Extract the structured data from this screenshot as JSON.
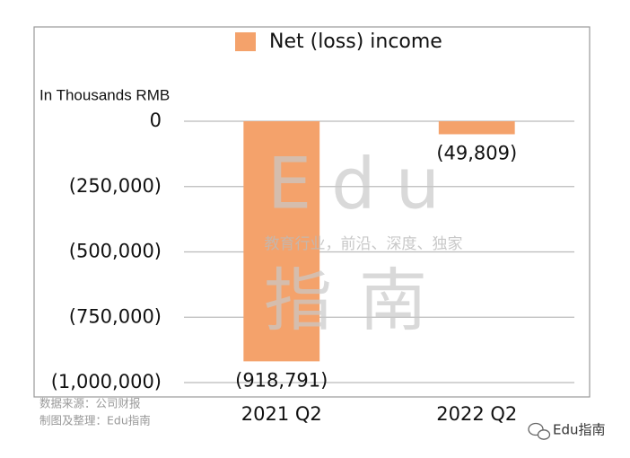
{
  "chart_data": {
    "type": "bar",
    "legend": "Net (loss) income",
    "y_axis_label": "In Thousands RMB",
    "categories": [
      "2021 Q2",
      "2022 Q2"
    ],
    "values": [
      -918791,
      -49809
    ],
    "value_labels": [
      "(918,791)",
      "(49,809)"
    ],
    "color": "#f4a26b",
    "ylim": [
      -1000000,
      0
    ],
    "yticks": [
      0,
      {
        "value": -250000,
        "label": "(250,000)"
      },
      {
        "value": -500000,
        "label": "(500,000)"
      },
      {
        "value": -750000,
        "label": "(750,000)"
      },
      {
        "value": -1000000,
        "label": "(1,000,000)"
      }
    ],
    "grid": true,
    "watermark": {
      "title": "Edu",
      "tagline": "教育行业，前沿、深度、独家",
      "subtitle": "指南"
    },
    "source_notes": [
      "数据来源：公司财报",
      "制图及整理：Edu指南"
    ],
    "brand": "Edu指南"
  }
}
